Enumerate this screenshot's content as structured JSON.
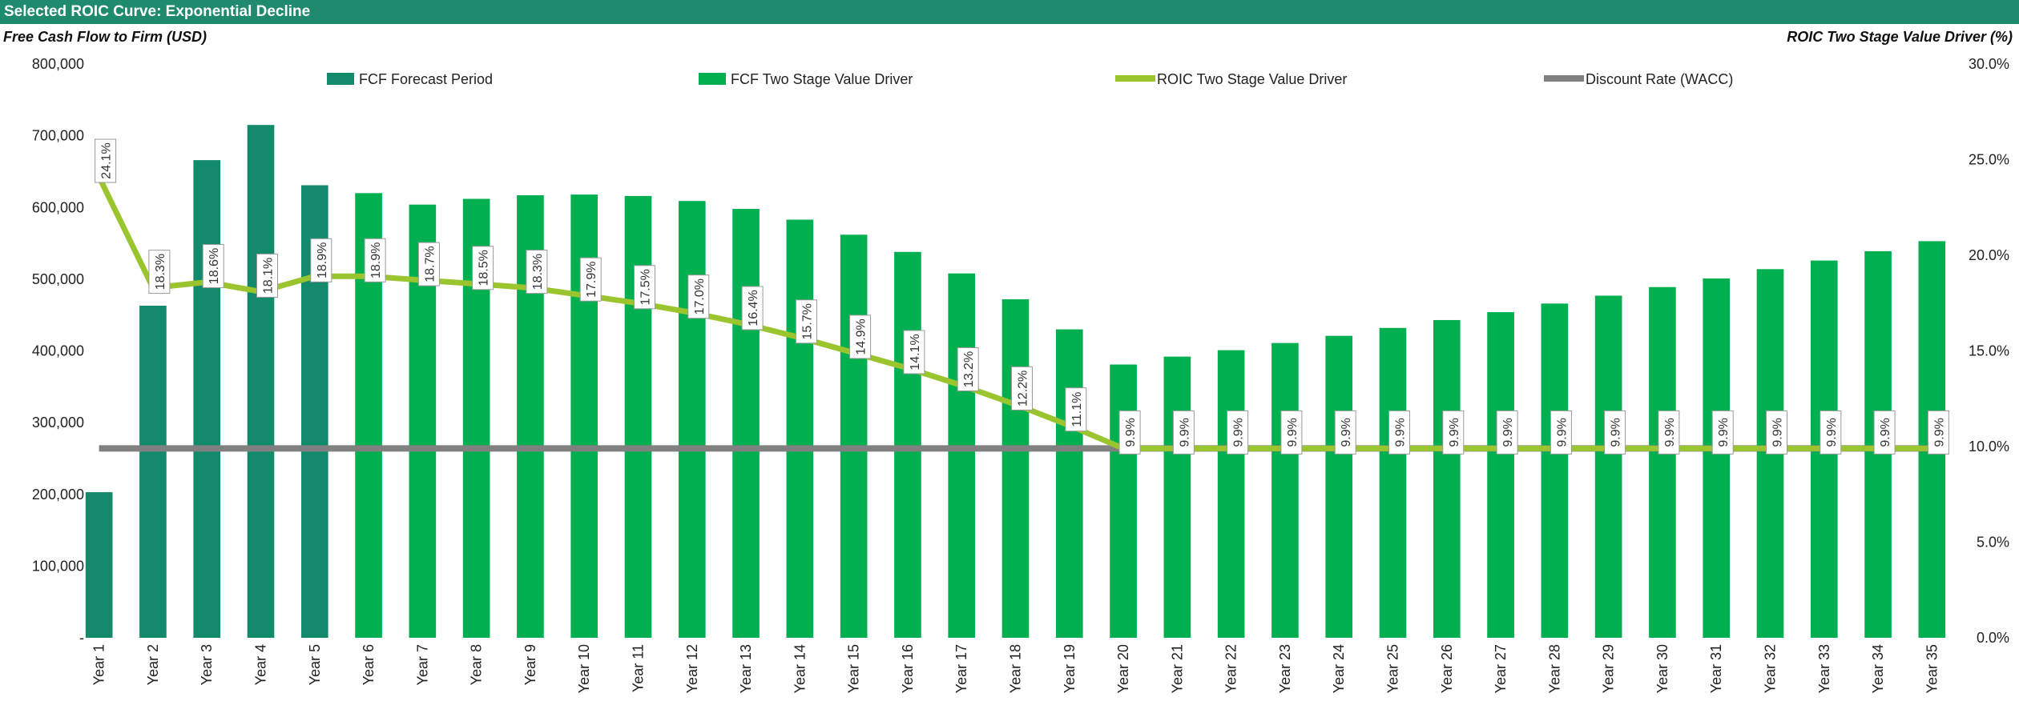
{
  "header": {
    "title": "Selected ROIC Curve: Exponential Decline"
  },
  "colors": {
    "title_bar": "#1f8a6e",
    "fcf_forecast": "#138a6c",
    "fcf_two_stage": "#00b050",
    "roic_line": "#9ac52f",
    "wacc_line": "#808080"
  },
  "chart_data": {
    "type": "bar",
    "ylabel": "Free Cash Flow to Firm (USD)",
    "y2label": "ROIC Two Stage Value Driver (%)",
    "ylim": [
      0,
      800000
    ],
    "y2lim": [
      0,
      30
    ],
    "y_ticks": [
      "-",
      "100,000",
      "200,000",
      "300,000",
      "400,000",
      "500,000",
      "600,000",
      "700,000",
      "800,000"
    ],
    "y2_ticks": [
      "0.0%",
      "5.0%",
      "10.0%",
      "15.0%",
      "20.0%",
      "25.0%",
      "30.0%"
    ],
    "legend_position": "top",
    "categories": [
      "Year 1",
      "Year 2",
      "Year 3",
      "Year 4",
      "Year 5",
      "Year 6",
      "Year 7",
      "Year 8",
      "Year 9",
      "Year 10",
      "Year 11",
      "Year 12",
      "Year 13",
      "Year 14",
      "Year 15",
      "Year 16",
      "Year 17",
      "Year 18",
      "Year 19",
      "Year 20",
      "Year 21",
      "Year 22",
      "Year 23",
      "Year 24",
      "Year 25",
      "Year 26",
      "Year 27",
      "Year 28",
      "Year 29",
      "Year 30",
      "Year 31",
      "Year 32",
      "Year 33",
      "Year 34",
      "Year 35"
    ],
    "series": [
      {
        "name": "FCF Forecast Period",
        "kind": "bar",
        "values": [
          203000,
          463000,
          666000,
          715000,
          631000,
          null,
          null,
          null,
          null,
          null,
          null,
          null,
          null,
          null,
          null,
          null,
          null,
          null,
          null,
          null,
          null,
          null,
          null,
          null,
          null,
          null,
          null,
          null,
          null,
          null,
          null,
          null,
          null,
          null,
          null
        ]
      },
      {
        "name": "FCF Two Stage Value Driver",
        "kind": "bar",
        "values": [
          null,
          null,
          null,
          null,
          null,
          620000,
          604000,
          612000,
          617000,
          618000,
          616000,
          609000,
          598000,
          583000,
          562000,
          538000,
          508000,
          472000,
          430000,
          381000,
          392000,
          401000,
          411000,
          421000,
          432000,
          443000,
          454000,
          466000,
          477000,
          489000,
          501000,
          514000,
          526000,
          539000,
          553000
        ]
      },
      {
        "name": "ROIC Two Stage Value Driver",
        "kind": "line",
        "axis": "right",
        "values": [
          24.1,
          18.3,
          18.6,
          18.1,
          18.9,
          18.9,
          18.7,
          18.5,
          18.3,
          17.9,
          17.5,
          17.0,
          16.4,
          15.7,
          14.9,
          14.1,
          13.2,
          12.2,
          11.1,
          9.9,
          9.9,
          9.9,
          9.9,
          9.9,
          9.9,
          9.9,
          9.9,
          9.9,
          9.9,
          9.9,
          9.9,
          9.9,
          9.9,
          9.9,
          9.9
        ],
        "labels": [
          "24.1%",
          "18.3%",
          "18.6%",
          "18.1%",
          "18.9%",
          "18.9%",
          "18.7%",
          "18.5%",
          "18.3%",
          "17.9%",
          "17.5%",
          "17.0%",
          "16.4%",
          "15.7%",
          "14.9%",
          "14.1%",
          "13.2%",
          "12.2%",
          "11.1%",
          "9.9%",
          "9.9%",
          "9.9%",
          "9.9%",
          "9.9%",
          "9.9%",
          "9.9%",
          "9.9%",
          "9.9%",
          "9.9%",
          "9.9%",
          "9.9%",
          "9.9%",
          "9.9%",
          "9.9%",
          "9.9%"
        ]
      },
      {
        "name": "Discount Rate (WACC)",
        "kind": "line",
        "axis": "right",
        "values": [
          9.9,
          9.9,
          9.9,
          9.9,
          9.9,
          9.9,
          9.9,
          9.9,
          9.9,
          9.9,
          9.9,
          9.9,
          9.9,
          9.9,
          9.9,
          9.9,
          9.9,
          9.9,
          9.9,
          9.9,
          9.9,
          9.9,
          9.9,
          9.9,
          9.9,
          9.9,
          9.9,
          9.9,
          9.9,
          9.9,
          9.9,
          9.9,
          9.9,
          9.9,
          9.9
        ]
      }
    ]
  }
}
